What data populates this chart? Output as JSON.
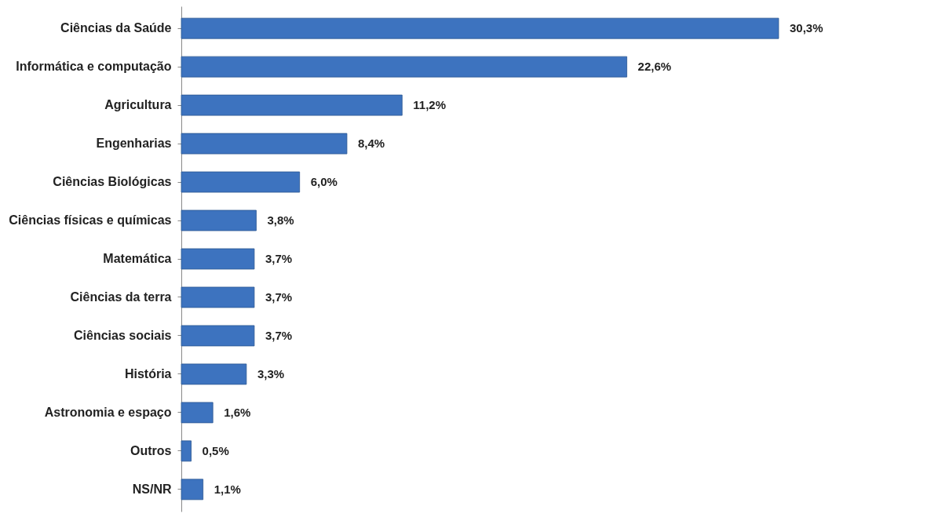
{
  "chart_data": {
    "type": "bar",
    "orientation": "horizontal",
    "categories": [
      "Ciências da Saúde",
      "Informática e computação",
      "Agricultura",
      "Engenharias",
      "Ciências Biológicas",
      "Ciências físicas e químicas",
      "Matemática",
      "Ciências da terra",
      "Ciências sociais",
      "História",
      "Astronomia e espaço",
      "Outros",
      "NS/NR"
    ],
    "values": [
      30.3,
      22.6,
      11.2,
      8.4,
      6.0,
      3.8,
      3.7,
      3.7,
      3.7,
      3.3,
      1.6,
      0.5,
      1.1
    ],
    "value_labels": [
      "30,3%",
      "22,6%",
      "11,2%",
      "8,4%",
      "6,0%",
      "3,8%",
      "3,7%",
      "3,7%",
      "3,7%",
      "3,3%",
      "1,6%",
      "0,5%",
      "1,1%"
    ],
    "color": "#3d73bf",
    "grid": false
  }
}
